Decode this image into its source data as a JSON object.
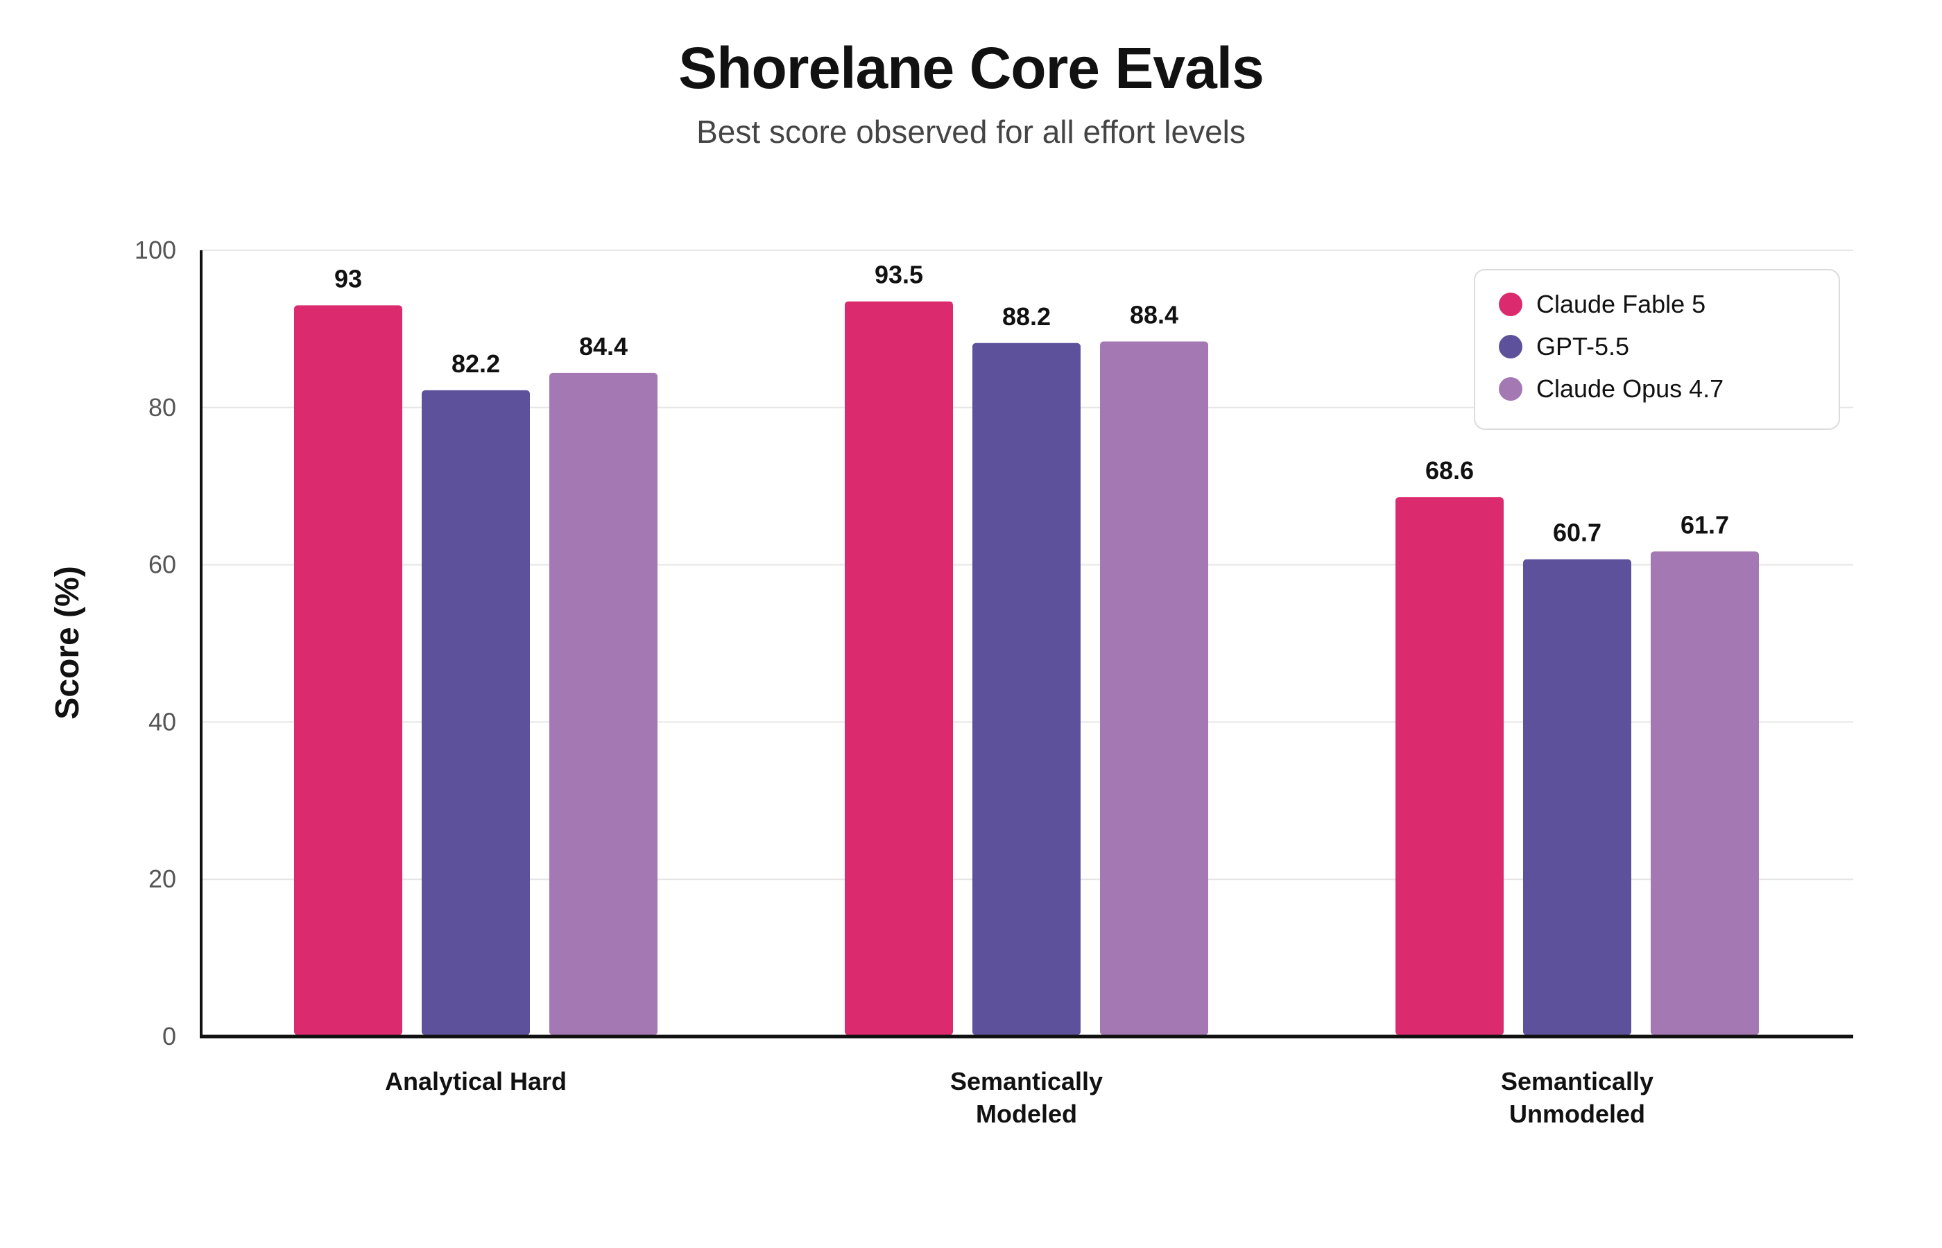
{
  "chart_data": {
    "type": "bar",
    "title": "Shorelane Core Evals",
    "subtitle": "Best score observed for all effort levels",
    "xlabel": "",
    "ylabel": "Score (%)",
    "ylim": [
      0,
      100
    ],
    "yticks": [
      0,
      20,
      40,
      60,
      80,
      100
    ],
    "grid": true,
    "legend_position": "top-right",
    "categories": [
      [
        "Analytical Hard"
      ],
      [
        "Semantically",
        "Modeled"
      ],
      [
        "Semantically",
        "Unmodeled"
      ]
    ],
    "series": [
      {
        "name": "Claude Fable 5",
        "color": "#db2b6e",
        "values": [
          93,
          93.5,
          68.6
        ]
      },
      {
        "name": "GPT-5.5",
        "color": "#5d519c",
        "values": [
          82.2,
          88.2,
          60.7
        ]
      },
      {
        "name": "Claude Opus 4.7",
        "color": "#a478b3",
        "values": [
          84.4,
          88.4,
          61.7
        ]
      }
    ]
  }
}
